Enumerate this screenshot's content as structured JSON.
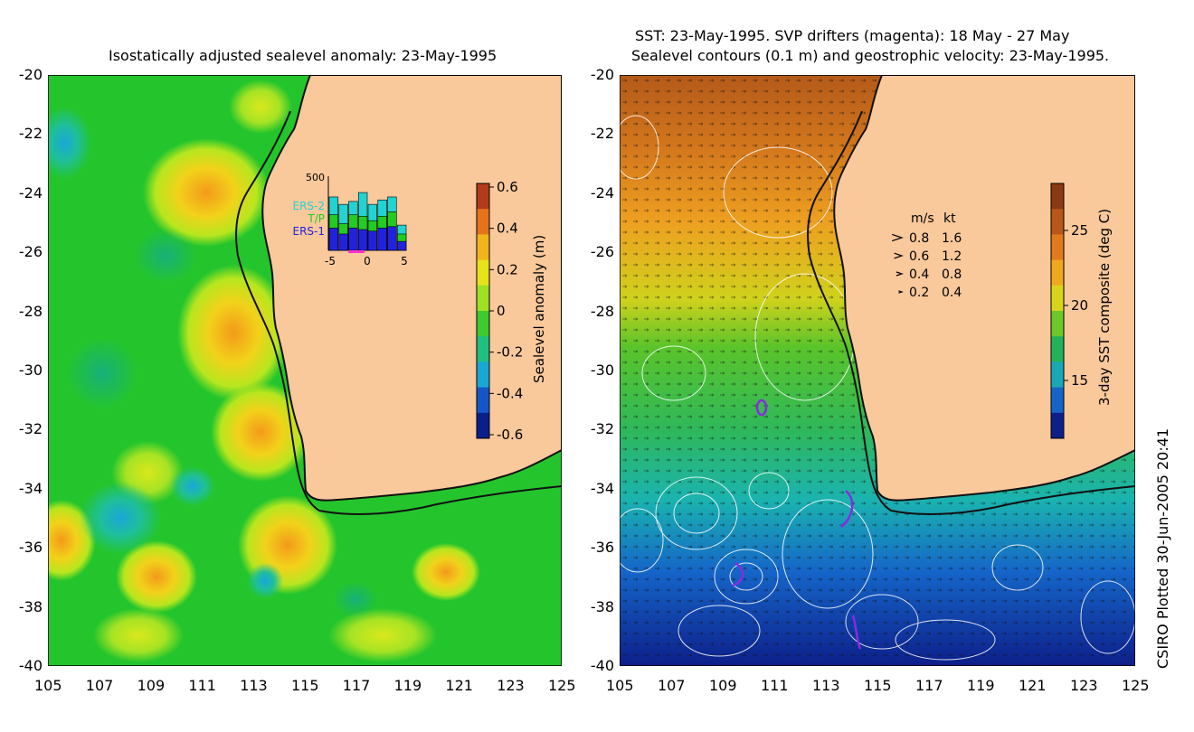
{
  "left_panel": {
    "title": "Isostatically adjusted sealevel anomaly: 23-May-1995",
    "colorbar": {
      "label": "Sealevel anomaly (m)",
      "ticks": [
        "0.6",
        "0.4",
        "0.2",
        "0",
        "-0.2",
        "-0.4",
        "-0.6"
      ]
    },
    "inset": {
      "ymax_label": "500",
      "legend": [
        "ERS-2",
        "T/P",
        "ERS-1"
      ],
      "legend_colors": [
        "#22d3d3",
        "#22cc22",
        "#2222dd"
      ],
      "x_ticks": [
        "-5",
        "0",
        "5"
      ]
    }
  },
  "right_panel": {
    "title_line1": "SST: 23-May-1995. SVP drifters (magenta): 18 May - 27 May",
    "title_line2": "Sealevel contours (0.1 m) and geostrophic velocity: 23-May-1995.",
    "colorbar": {
      "label": "3-day SST composite (deg C)",
      "ticks": [
        "25",
        "20",
        "15"
      ]
    },
    "velocity_legend": {
      "header_ms": "m/s",
      "header_kt": "kt",
      "rows": [
        {
          "ms": "0.8",
          "kt": "1.6"
        },
        {
          "ms": "0.6",
          "kt": "1.2"
        },
        {
          "ms": "0.4",
          "kt": "0.8"
        },
        {
          "ms": "0.2",
          "kt": "0.4"
        }
      ]
    }
  },
  "axes": {
    "lat_ticks": [
      "-20",
      "-22",
      "-24",
      "-26",
      "-28",
      "-30",
      "-32",
      "-34",
      "-36",
      "-38",
      "-40"
    ],
    "lon_ticks": [
      "105",
      "107",
      "109",
      "111",
      "113",
      "115",
      "117",
      "119",
      "121",
      "123",
      "125"
    ]
  },
  "credit": "CSIRO Plotted 30-Jun-2005 20:41",
  "colors": {
    "land": "#f9c89b",
    "ocean_base": "#22c32a",
    "coast": "#111111"
  }
}
